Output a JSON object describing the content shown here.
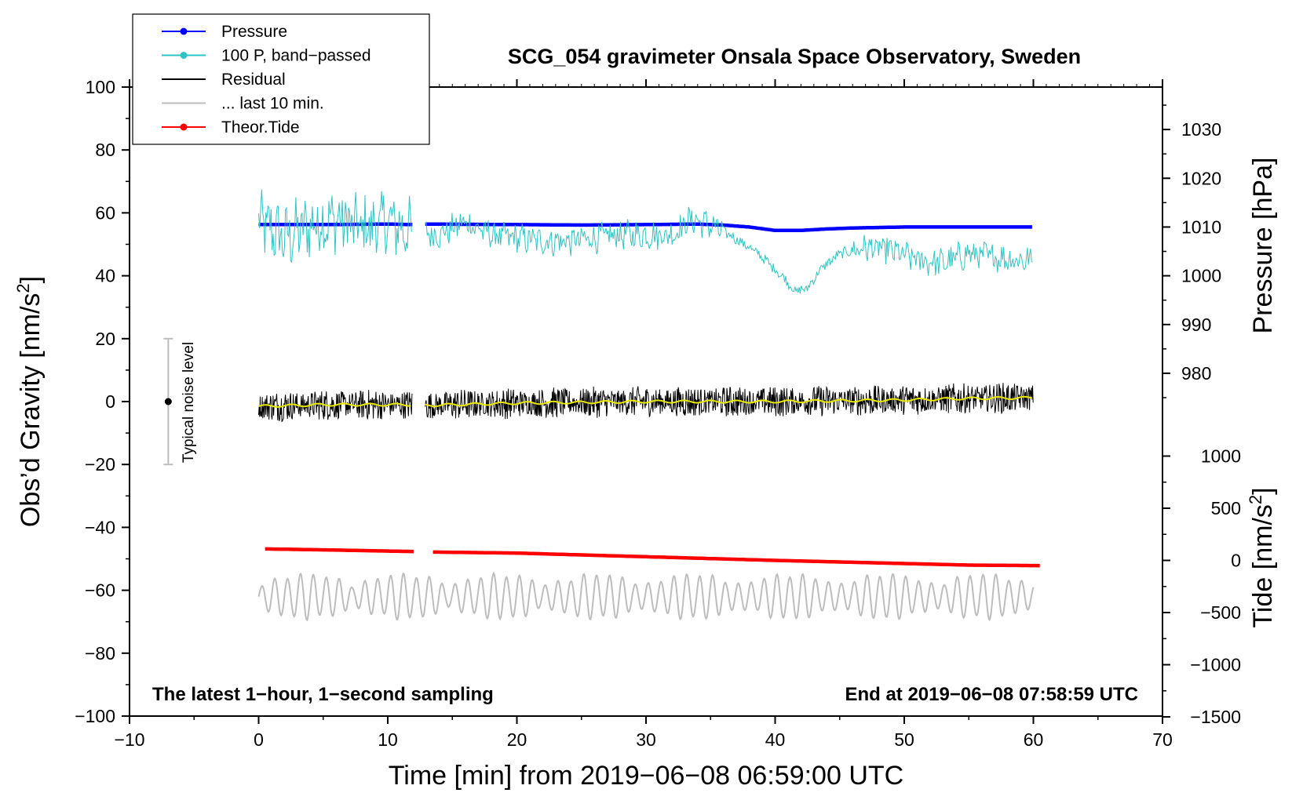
{
  "chart_data": {
    "type": "line",
    "title": "SCG_054 gravimeter Onsala Space Observatory, Sweden",
    "xlabel": "Time [min] from 2019−06−08 06:59:00 UTC",
    "xlim": [
      -10,
      70
    ],
    "xticks": [
      -10,
      0,
      10,
      20,
      30,
      40,
      50,
      60,
      70
    ],
    "xtick_labels": [
      "−10",
      "0",
      "10",
      "20",
      "30",
      "40",
      "50",
      "60",
      "70"
    ],
    "left_axis": {
      "label_main": "Obs’d Gravity [nm/s",
      "label_sup": "2",
      "label_end": "]",
      "ylim": [
        -100,
        100
      ],
      "ticks": [
        -100,
        -80,
        -60,
        -40,
        -20,
        0,
        20,
        40,
        60,
        80,
        100
      ],
      "tick_labels": [
        "−100",
        "−80",
        "−60",
        "−40",
        "−20",
        "0",
        "20",
        "40",
        "60",
        "80",
        "100"
      ]
    },
    "pressure_axis": {
      "label": "Pressure [hPa]",
      "ticks": [
        980,
        990,
        1000,
        1010,
        1020,
        1030
      ],
      "tick_labels": [
        "980",
        "990",
        "1000",
        "1010",
        "1020",
        "1030"
      ],
      "grav_at_1000": 40,
      "grav_per_hpa": 1.55
    },
    "tide_axis": {
      "label_main": "Tide [nm/s",
      "label_sup": "2",
      "label_end": "]",
      "ticks": [
        -1500,
        -1000,
        -500,
        0,
        500,
        1000
      ],
      "tick_labels": [
        "−1500",
        "−1000",
        "−500",
        "0",
        "500",
        "1000"
      ],
      "grav_at_0": -50.5,
      "grav_per_unit": 0.03317
    },
    "legend": {
      "position": "top-left",
      "entries": [
        {
          "label": "Pressure",
          "color": "#0000ff",
          "style": "line-dot"
        },
        {
          "label": "100 P, band−passed",
          "color": "#2ec4c4",
          "style": "line-dot"
        },
        {
          "label": "Residual",
          "color": "#000000",
          "style": "line"
        },
        {
          "label": "... last 10 min.",
          "color": "#bdbdbd",
          "style": "line"
        },
        {
          "label": "Theor.Tide",
          "color": "#ff0000",
          "style": "line-dot"
        }
      ]
    },
    "series": [
      {
        "name": "Pressure",
        "axis": "pressure",
        "color": "#0000ff",
        "x": [
          0,
          5,
          10,
          11.9,
          12.9,
          20,
          25,
          30,
          34,
          36,
          38,
          40,
          42,
          44,
          46,
          50,
          55,
          60
        ],
        "y": [
          1010.5,
          1010.5,
          1010.6,
          1010.5,
          1010.6,
          1010.5,
          1010.4,
          1010.5,
          1010.6,
          1010.4,
          1010.0,
          1009.3,
          1009.3,
          1009.6,
          1009.8,
          1010.0,
          1010.0,
          1010.0
        ]
      },
      {
        "name": "100 P, band−passed",
        "axis": "left",
        "color": "#2ec4c4",
        "x": [
          0,
          2,
          4,
          6,
          8,
          10,
          11.9,
          13.9,
          16,
          18,
          20,
          22,
          24,
          26,
          28,
          30,
          32,
          33.5,
          35,
          36.5,
          38,
          39,
          40,
          41,
          41.5,
          42.5,
          43.5,
          45,
          47,
          49,
          51,
          53,
          55,
          57,
          59,
          60
        ],
        "y": [
          57,
          52,
          56,
          58,
          55,
          57,
          54,
          53,
          57,
          53,
          52,
          51,
          51,
          52,
          53,
          53,
          53,
          58,
          56,
          53,
          49,
          46,
          42,
          38,
          35,
          36,
          42,
          47,
          49,
          48,
          45,
          44,
          47,
          46,
          45,
          45
        ]
      },
      {
        "name": "Residual",
        "axis": "left",
        "color": "#000000",
        "x": [
          0,
          5,
          11.9,
          13,
          20,
          30,
          40,
          50,
          55,
          60
        ],
        "y": [
          -1.5,
          -1.0,
          -1.0,
          -1.2,
          -0.5,
          0,
          0,
          0.5,
          1.0,
          1.2
        ]
      },
      {
        "name": "... last 10 min.",
        "axis": "left",
        "color": "#bdbdbd",
        "x": [
          0,
          60
        ],
        "y": [
          -62,
          -62
        ]
      },
      {
        "name": "Theor.Tide",
        "axis": "tide",
        "color": "#ff0000",
        "x": [
          0.5,
          5.5,
          12,
          13.5,
          20,
          30,
          40,
          50,
          55,
          60.5
        ],
        "y": [
          110,
          100,
          85,
          80,
          70,
          35,
          0,
          -30,
          -45,
          -50
        ]
      }
    ],
    "noise_level": {
      "label": "Typical noise level",
      "x": -7,
      "center": 0,
      "half_range": 20
    },
    "annotations": {
      "left_note": "The latest 1−hour, 1−second sampling",
      "right_note": "End at 2019−06−08 07:58:59 UTC"
    }
  }
}
